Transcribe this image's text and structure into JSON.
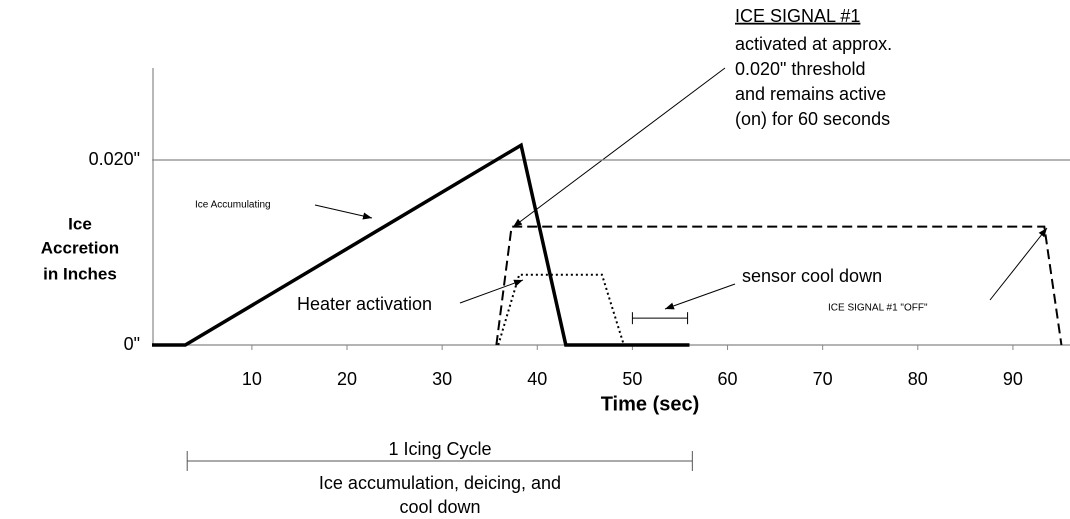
{
  "chart_data": {
    "type": "line",
    "x_label": "Time (sec)",
    "y_label": [
      "Ice",
      "Accretion",
      "in Inches"
    ],
    "xlim": [
      -0.5,
      96
    ],
    "ylim": [
      0,
      0.03
    ],
    "xticks": [
      10,
      20,
      30,
      40,
      50,
      60,
      70,
      80,
      90
    ],
    "yticks": [
      {
        "value": 0,
        "label": "0\""
      },
      {
        "value": 0.02,
        "label": "0.020\""
      }
    ],
    "grid": true,
    "series": [
      {
        "style": "solid",
        "color": "#000000",
        "x": [
          -0.5,
          3,
          38.3,
          43,
          56
        ],
        "values": [
          0,
          0,
          0.0216,
          0,
          0
        ]
      },
      {
        "style": "dashed",
        "color": "#000000",
        "x": [
          35.7,
          37.3,
          93.3,
          95.1
        ],
        "values": [
          0,
          0.0128,
          0.0128,
          0
        ]
      },
      {
        "style": "dotted",
        "color": "#000000",
        "x": [
          35.9,
          38.1,
          46.8,
          49.1
        ],
        "values": [
          0,
          0.0076,
          0.0076,
          0
        ]
      }
    ],
    "sensor_bracket": {
      "x": [
        50,
        55.8
      ],
      "y": 0.0029
    },
    "cycle_bracket": {
      "x": [
        3.2,
        56.3
      ]
    },
    "annotations": {
      "signal_title": "ICE SIGNAL #1",
      "signal_lines": [
        "activated at approx.",
        "0.020\" threshold",
        "and remains active",
        "(on) for 60 seconds"
      ],
      "ice_accumulating": "Ice Accumulating",
      "heater": "Heater activation",
      "cool_down": "sensor cool down",
      "signal_off": "ICE SIGNAL #1 \"OFF\"",
      "cycle_title": "1 Icing Cycle",
      "cycle_lines": [
        "Ice accumulation, deicing, and",
        "cool down"
      ]
    }
  }
}
